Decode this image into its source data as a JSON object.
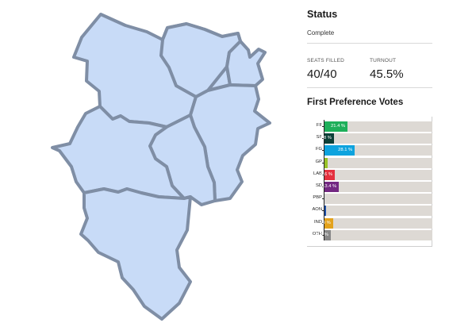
{
  "status": {
    "heading": "Status",
    "value": "Complete"
  },
  "stats": {
    "seats_label": "SEATS FILLED",
    "seats_value": "40/40",
    "turnout_label": "TURNOUT",
    "turnout_value": "45.5%"
  },
  "votes": {
    "heading": "First Preference Votes"
  },
  "chart_data": {
    "type": "bar",
    "title": "First Preference Votes",
    "categories": [
      "FF",
      "SF",
      "FG",
      "GP",
      "LAB",
      "SD",
      "PBP",
      "AON",
      "IND",
      "OTH"
    ],
    "values": [
      21.4,
      8.8,
      28.1,
      3.0,
      9.6,
      13.4,
      0.2,
      1.3,
      7.9,
      5.8
    ],
    "labels": [
      "21.4 %",
      "8.8 %",
      "28.1 %",
      "",
      "9.6 %",
      "13.4 %",
      "",
      "",
      "7.9 %",
      "5.8 %"
    ],
    "colors": [
      "#1eaf5a",
      "#0d4038",
      "#0ea3de",
      "#99c227",
      "#e4303e",
      "#732882",
      "#d9d9d9",
      "#1c4fa8",
      "#e3a21c",
      "#888888"
    ],
    "ylim": [
      0,
      100
    ]
  }
}
